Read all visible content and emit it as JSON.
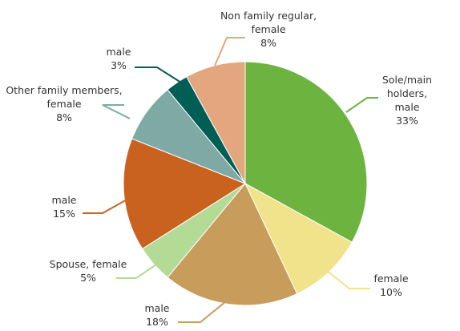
{
  "chart_data": {
    "type": "pie",
    "categories": [
      "Sole/main holders,\nmale",
      "female",
      "male",
      "Spouse, female",
      "male",
      "Other family members,\nfemale",
      "male",
      "Non family regular,\nfemale"
    ],
    "values": [
      33,
      10,
      18,
      5,
      15,
      8,
      3,
      8
    ],
    "value_labels": [
      "33%",
      "10%",
      "18%",
      "5%",
      "15%",
      "8%",
      "3%",
      "8%"
    ],
    "colors": [
      "#6cb43f",
      "#f1e28c",
      "#c89c5b",
      "#b4db96",
      "#c9621f",
      "#7fa9a5",
      "#005e54",
      "#e3a67f"
    ]
  }
}
